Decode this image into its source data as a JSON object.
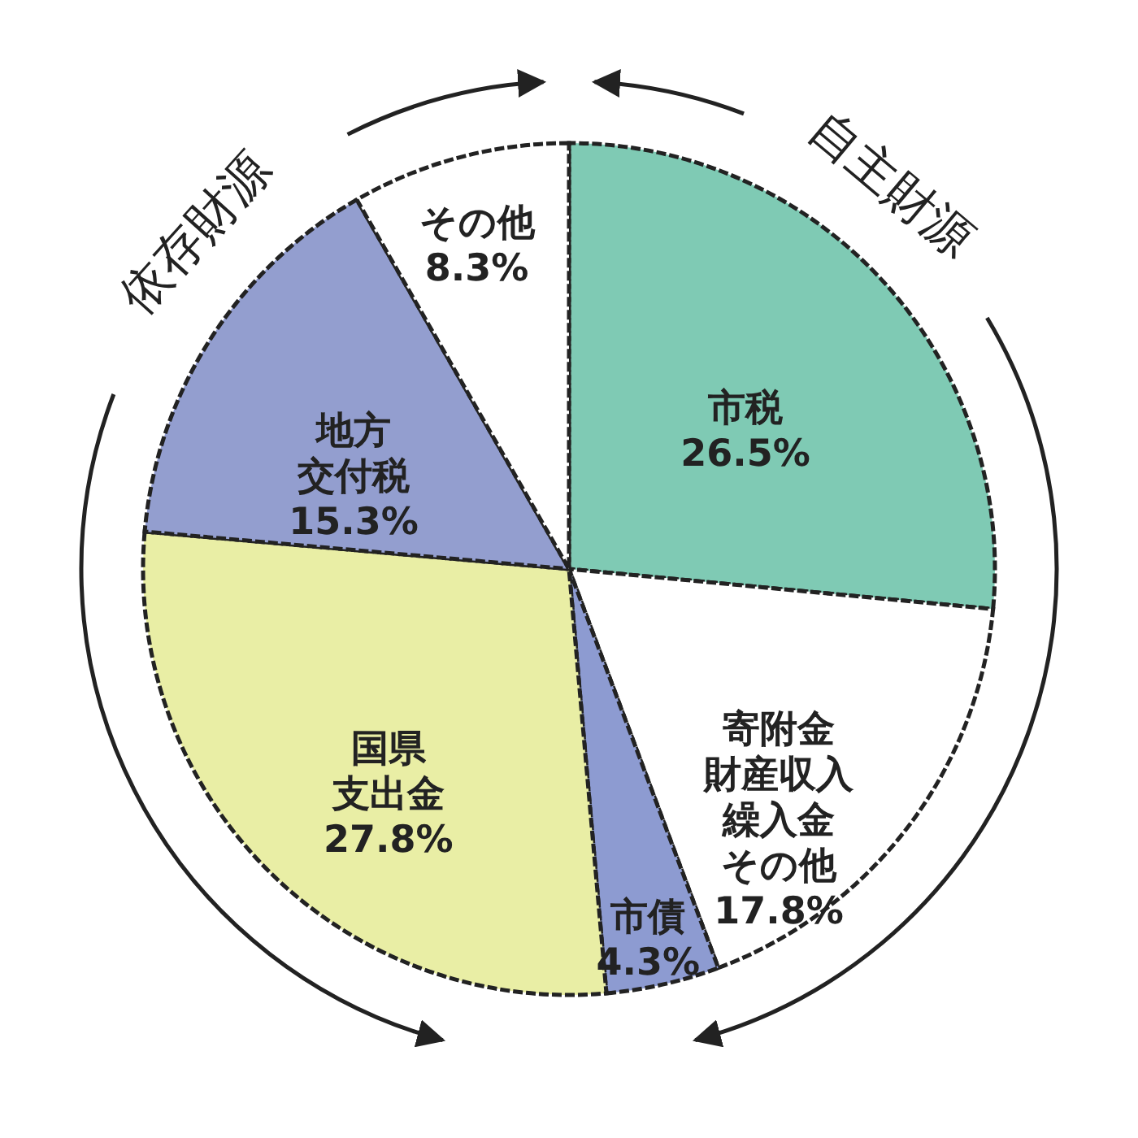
{
  "chart_data": {
    "type": "pie",
    "categories": [
      "市税",
      "寄附金財産収入繰入金その他",
      "市債",
      "国県支出金",
      "地方交付税",
      "その他"
    ],
    "values": [
      26.5,
      17.8,
      4.3,
      27.8,
      15.3,
      8.3
    ],
    "value_labels": [
      "26.5%",
      "17.8%",
      "4.3%",
      "27.8%",
      "15.3%",
      "8.3%"
    ],
    "colors": [
      "#7fcab4",
      "#ffffff",
      "#8d9bd1",
      "#e9eea5",
      "#939ecf",
      "#ffffff"
    ],
    "annotations": [
      "自主財源",
      "依存財源"
    ]
  }
}
